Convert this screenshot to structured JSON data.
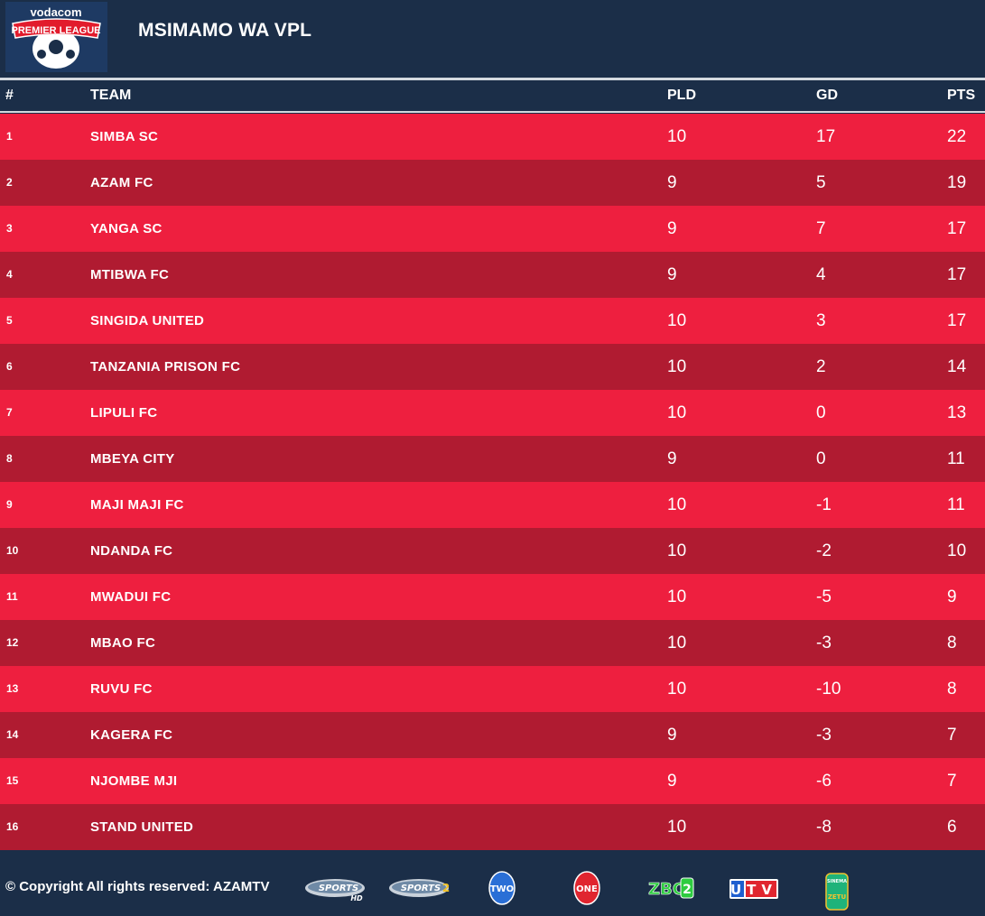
{
  "header": {
    "logo_top_text": "vodacom",
    "logo_band_text": "PREMIER LEAGUE",
    "title": "MSIMAMO WA VPL"
  },
  "columns": {
    "rank": "#",
    "team": "TEAM",
    "played": "PLD",
    "goal_difference": "GD",
    "points": "PTS"
  },
  "standings": [
    {
      "rank": "1",
      "team": "SIMBA SC",
      "pld": "10",
      "gd": "17",
      "pts": "22"
    },
    {
      "rank": "2",
      "team": "AZAM FC",
      "pld": "9",
      "gd": "5",
      "pts": "19"
    },
    {
      "rank": "3",
      "team": "YANGA SC",
      "pld": "9",
      "gd": "7",
      "pts": "17"
    },
    {
      "rank": "4",
      "team": "MTIBWA FC",
      "pld": "9",
      "gd": "4",
      "pts": "17"
    },
    {
      "rank": "5",
      "team": "SINGIDA UNITED",
      "pld": "10",
      "gd": "3",
      "pts": "17"
    },
    {
      "rank": "6",
      "team": "TANZANIA PRISON FC",
      "pld": "10",
      "gd": "2",
      "pts": "14"
    },
    {
      "rank": "7",
      "team": "LIPULI FC",
      "pld": "10",
      "gd": "0",
      "pts": "13"
    },
    {
      "rank": "8",
      "team": "MBEYA CITY",
      "pld": "9",
      "gd": "0",
      "pts": "11"
    },
    {
      "rank": "9",
      "team": "MAJI MAJI FC",
      "pld": "10",
      "gd": "-1",
      "pts": "11"
    },
    {
      "rank": "10",
      "team": "NDANDA FC",
      "pld": "10",
      "gd": "-2",
      "pts": "10"
    },
    {
      "rank": "11",
      "team": "MWADUI FC",
      "pld": "10",
      "gd": "-5",
      "pts": "9"
    },
    {
      "rank": "12",
      "team": "MBAO FC",
      "pld": "10",
      "gd": "-3",
      "pts": "8"
    },
    {
      "rank": "13",
      "team": "RUVU FC",
      "pld": "10",
      "gd": "-10",
      "pts": "8"
    },
    {
      "rank": "14",
      "team": "KAGERA FC",
      "pld": "9",
      "gd": "-3",
      "pts": "7"
    },
    {
      "rank": "15",
      "team": "NJOMBE MJI",
      "pld": "9",
      "gd": "-6",
      "pts": "7"
    },
    {
      "rank": "16",
      "team": "STAND UNITED",
      "pld": "10",
      "gd": "-8",
      "pts": "6"
    }
  ],
  "footer": {
    "copyright": "© Copyright All rights reserved: AZAMTV",
    "channels": [
      {
        "icon": "azam-sports-hd-logo",
        "label": "SPORTS",
        "sub": "HD"
      },
      {
        "icon": "azam-sports-2-logo",
        "label": "SPORTS",
        "sub": "2"
      },
      {
        "icon": "azam-two-logo",
        "label": "TWO"
      },
      {
        "icon": "azam-one-logo",
        "label": "ONE"
      },
      {
        "icon": "zbc-2-logo",
        "label": "ZBC",
        "sub": "2"
      },
      {
        "icon": "utv-logo",
        "label": "UTV"
      },
      {
        "icon": "sinema-zetu-logo",
        "label": "ZETU",
        "sub": "SINEMA"
      }
    ]
  },
  "colors": {
    "background": "#1b2e48",
    "row_light": "#ee1f3f",
    "row_dark": "#b01b31",
    "rule": "#d4d9df",
    "text": "#ffffff"
  }
}
